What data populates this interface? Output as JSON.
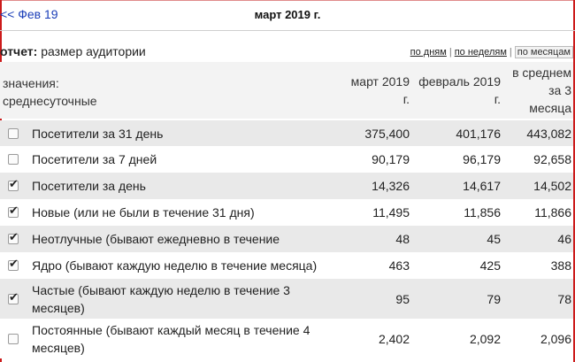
{
  "header": {
    "prev_link": "<< Фев 19",
    "title": "март 2019 г."
  },
  "report": {
    "prefix": "отчет:",
    "name": "размер аудитории",
    "periods": [
      "по дням",
      "по неделям",
      "по месяцам"
    ],
    "active_period": "по месяцам"
  },
  "table": {
    "label_header": [
      "значения:",
      "среднесуточные"
    ],
    "columns": [
      [
        "март 2019",
        "г."
      ],
      [
        "февраль 2019",
        "г."
      ],
      [
        "в среднем",
        "за 3",
        "месяца"
      ]
    ],
    "rows": [
      {
        "label": [
          "Посетители за 31 день"
        ],
        "checked": false,
        "values": [
          "375,400",
          "401,176",
          "443,082"
        ]
      },
      {
        "label": [
          "Посетители за 7 дней"
        ],
        "checked": false,
        "values": [
          "90,179",
          "96,179",
          "92,658"
        ]
      },
      {
        "label": [
          "Посетители за день"
        ],
        "checked": true,
        "values": [
          "14,326",
          "14,617",
          "14,502"
        ]
      },
      {
        "label": [
          "Новые (или не были в течение 31 дня)"
        ],
        "checked": true,
        "values": [
          "11,495",
          "11,856",
          "11,866"
        ]
      },
      {
        "label": [
          "Неотлучные (бывают ежедневно в течение недели)"
        ],
        "checked": true,
        "values": [
          "48",
          "45",
          "46"
        ]
      },
      {
        "label": [
          "Ядро (бывают каждую неделю в течение месяца)"
        ],
        "checked": true,
        "values": [
          "463",
          "425",
          "388"
        ]
      },
      {
        "label": [
          "Частые (бывают каждую неделю в течение 3",
          "месяцев)"
        ],
        "checked": true,
        "values": [
          "95",
          "79",
          "78"
        ]
      },
      {
        "label": [
          "Постоянные (бывают каждый месяц в течение 4",
          "месяцев)"
        ],
        "checked": false,
        "values": [
          "2,402",
          "2,092",
          "2,096"
        ]
      }
    ]
  }
}
